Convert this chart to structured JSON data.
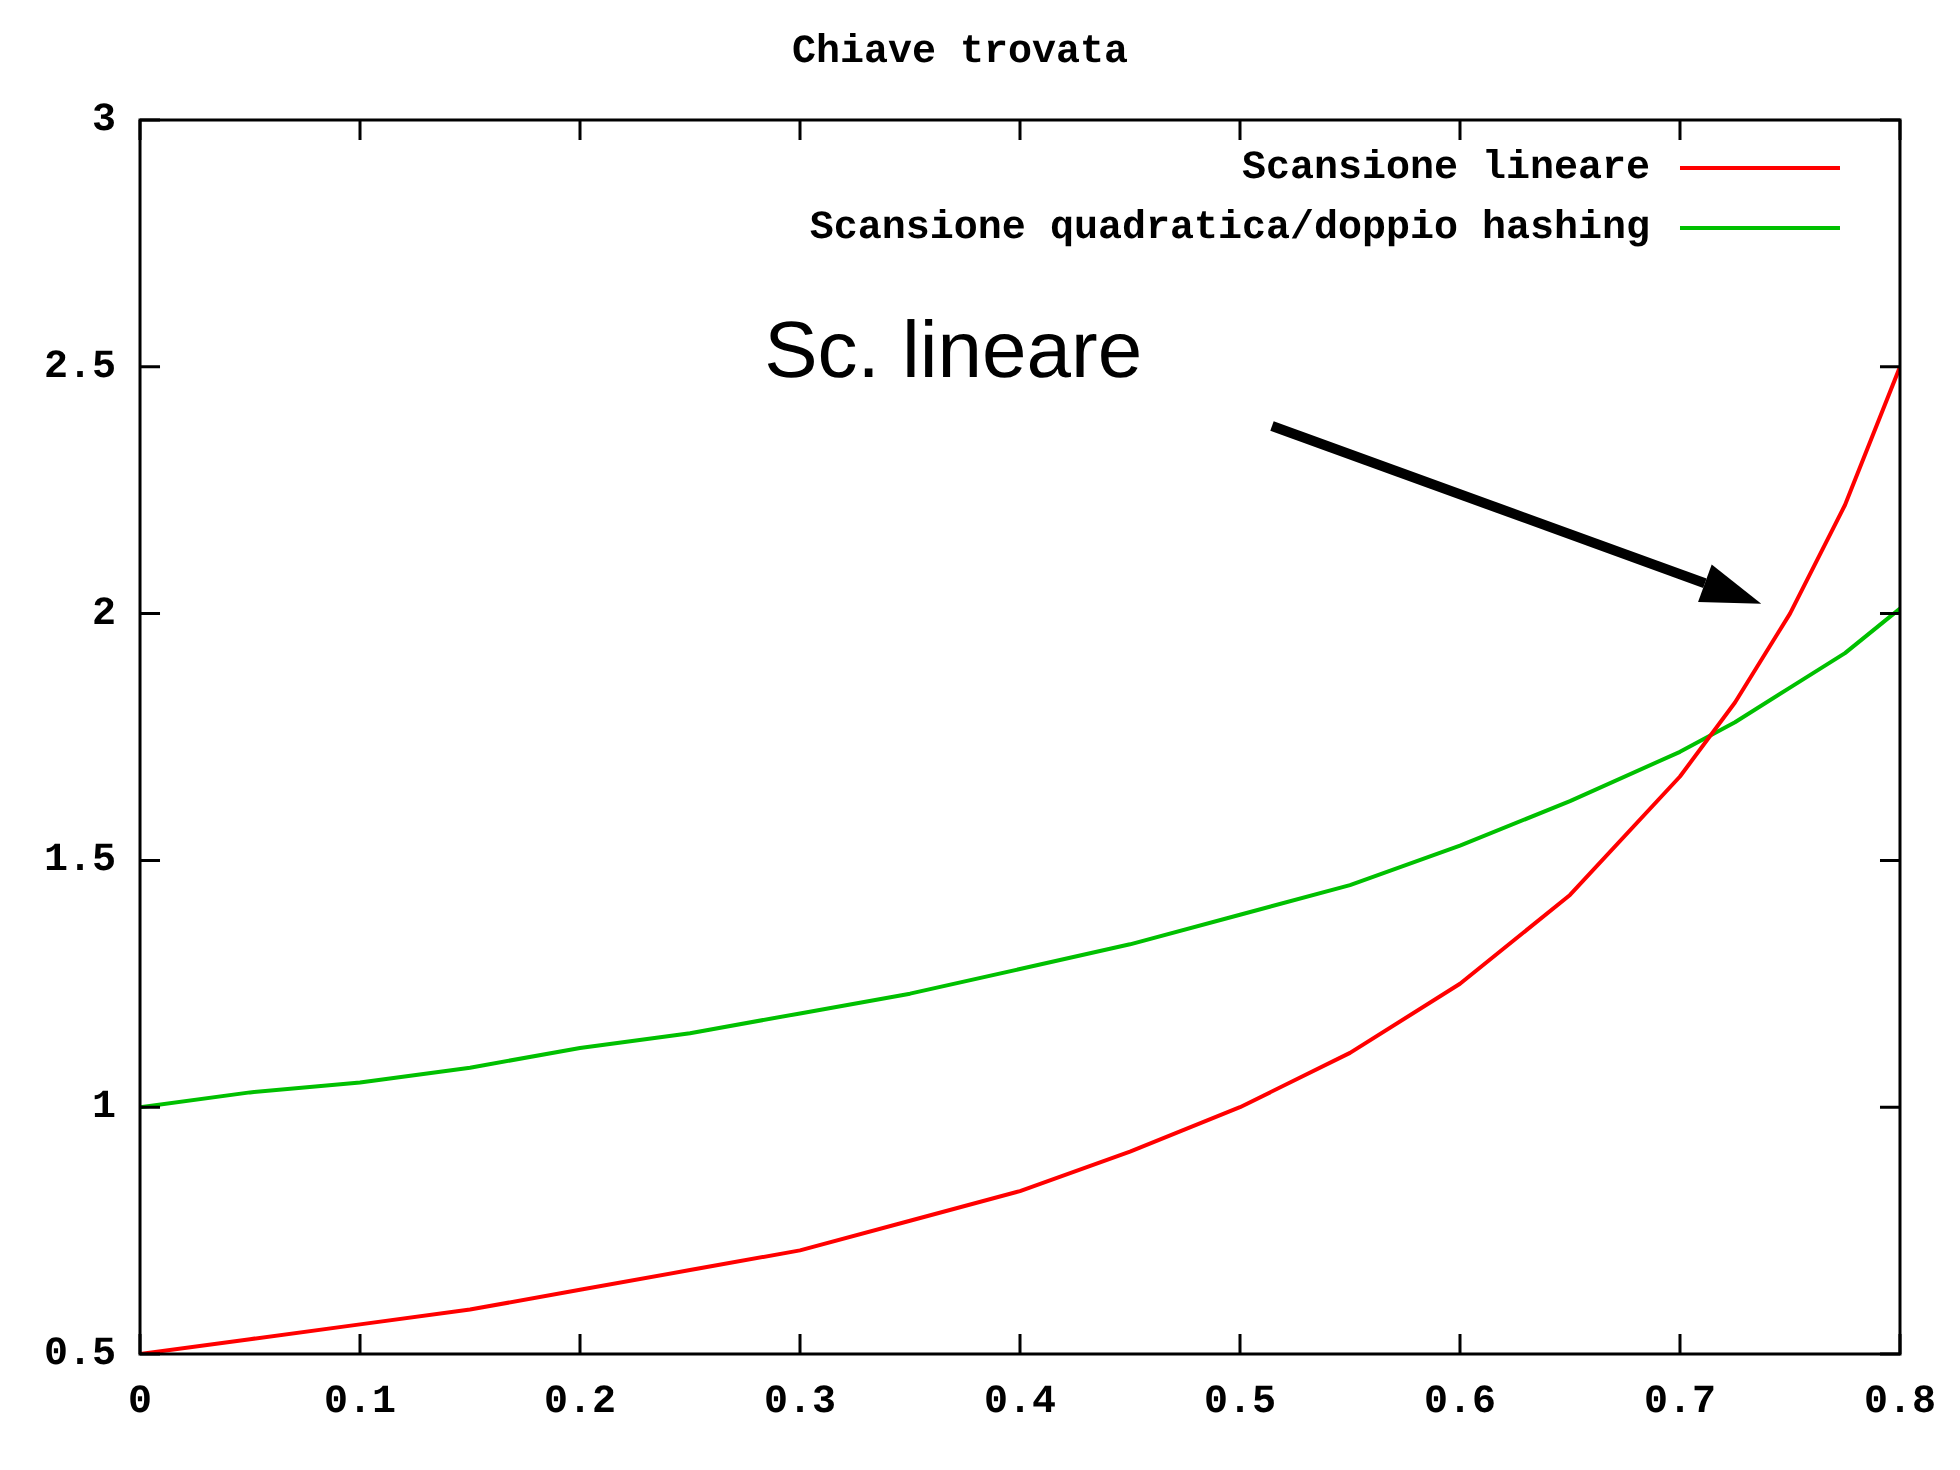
{
  "chart_data": {
    "type": "line",
    "title": "Chiave trovata",
    "x": [
      0,
      0.05,
      0.1,
      0.15,
      0.2,
      0.25,
      0.3,
      0.35,
      0.4,
      0.45,
      0.5,
      0.55,
      0.6,
      0.65,
      0.7,
      0.725,
      0.75,
      0.775,
      0.8
    ],
    "series": [
      {
        "name": "Scansione lineare",
        "color": "#ff0000",
        "values": [
          0.5,
          0.53,
          0.56,
          0.59,
          0.63,
          0.67,
          0.71,
          0.77,
          0.83,
          0.91,
          1.0,
          1.11,
          1.25,
          1.43,
          1.67,
          1.82,
          2.0,
          2.22,
          2.5
        ]
      },
      {
        "name": "Scansione quadratica/doppio hashing",
        "color": "#00c000",
        "values": [
          1.0,
          1.03,
          1.05,
          1.08,
          1.12,
          1.15,
          1.19,
          1.23,
          1.28,
          1.33,
          1.39,
          1.45,
          1.53,
          1.62,
          1.72,
          1.78,
          1.85,
          1.92,
          2.01
        ]
      }
    ],
    "xlim": [
      0,
      0.8
    ],
    "xticks": [
      0,
      0.1,
      0.2,
      0.3,
      0.4,
      0.5,
      0.6,
      0.7,
      0.8
    ],
    "ylim": [
      0.5,
      3
    ],
    "yticks": [
      0.5,
      1,
      1.5,
      2,
      2.5,
      3
    ],
    "grid": false,
    "legend": "top right",
    "marker": "none",
    "line_style": "solid",
    "annotations": [
      "Sc. lineare"
    ]
  }
}
